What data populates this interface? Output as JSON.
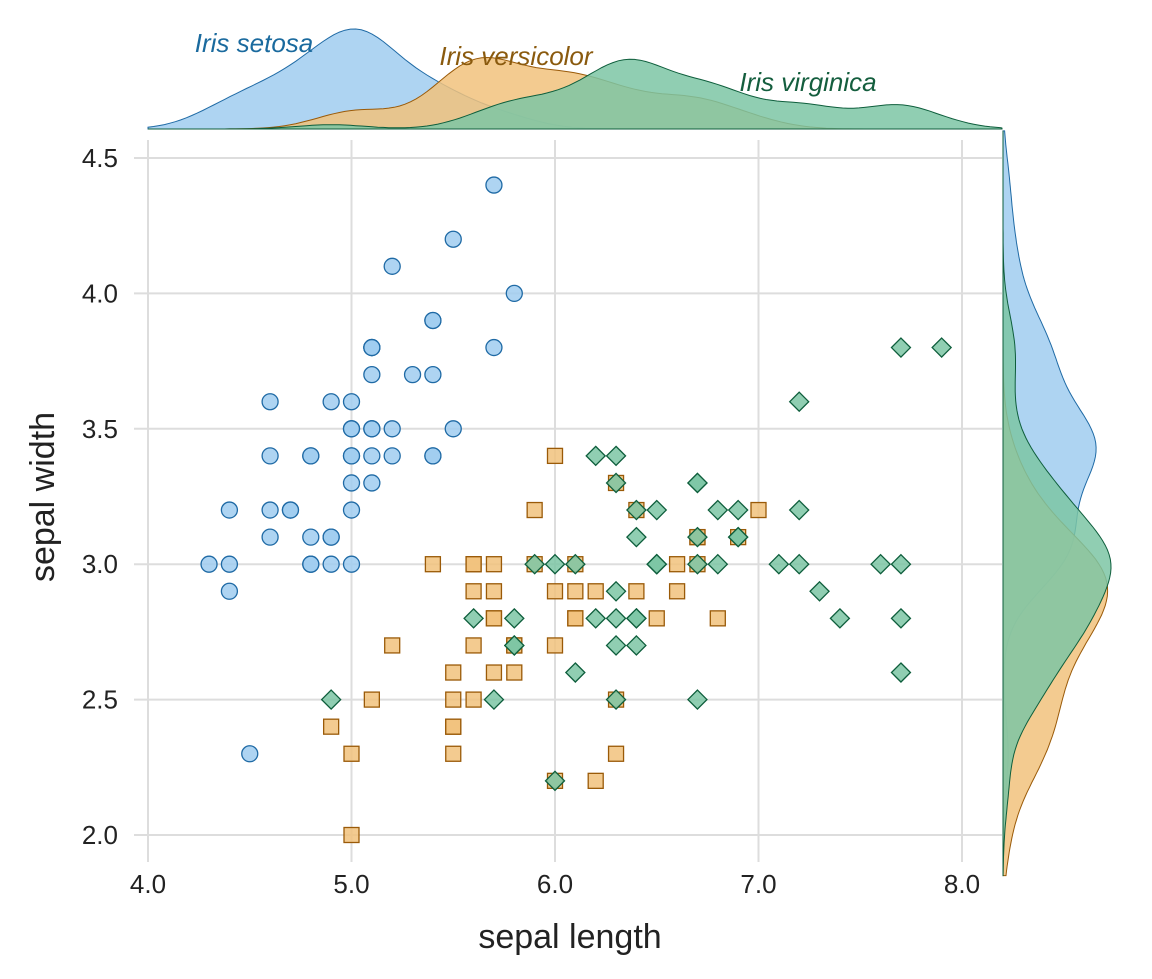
{
  "chart_data": {
    "type": "scatter",
    "xlabel": "sepal length",
    "ylabel": "sepal width",
    "xlim": [
      4.0,
      8.0
    ],
    "ylim": [
      2.0,
      4.5
    ],
    "x_ticks": [
      "4.0",
      "5.0",
      "6.0",
      "7.0",
      "8.0"
    ],
    "y_ticks": [
      "2.0",
      "2.5",
      "3.0",
      "3.5",
      "4.0",
      "4.5"
    ],
    "grid": true,
    "marginal_densities": "top and right, one filled curve per series",
    "series": [
      {
        "name": "Iris setosa",
        "marker": "circle",
        "fill": "#a0cdf0",
        "stroke": "#1f6aa5",
        "label_color": "#1a6a9e",
        "points": [
          [
            5.1,
            3.5
          ],
          [
            4.9,
            3.0
          ],
          [
            4.7,
            3.2
          ],
          [
            4.6,
            3.1
          ],
          [
            5.0,
            3.6
          ],
          [
            5.4,
            3.9
          ],
          [
            4.6,
            3.4
          ],
          [
            5.0,
            3.4
          ],
          [
            4.4,
            2.9
          ],
          [
            4.9,
            3.1
          ],
          [
            5.4,
            3.7
          ],
          [
            4.8,
            3.4
          ],
          [
            4.8,
            3.0
          ],
          [
            4.3,
            3.0
          ],
          [
            5.8,
            4.0
          ],
          [
            5.7,
            4.4
          ],
          [
            5.4,
            3.9
          ],
          [
            5.1,
            3.5
          ],
          [
            5.7,
            3.8
          ],
          [
            5.1,
            3.8
          ],
          [
            5.4,
            3.4
          ],
          [
            5.1,
            3.7
          ],
          [
            4.6,
            3.6
          ],
          [
            5.1,
            3.3
          ],
          [
            4.8,
            3.4
          ],
          [
            5.0,
            3.0
          ],
          [
            5.0,
            3.4
          ],
          [
            5.2,
            3.5
          ],
          [
            5.2,
            3.4
          ],
          [
            4.7,
            3.2
          ],
          [
            4.8,
            3.1
          ],
          [
            5.4,
            3.4
          ],
          [
            5.2,
            4.1
          ],
          [
            5.5,
            4.2
          ],
          [
            4.9,
            3.1
          ],
          [
            5.0,
            3.2
          ],
          [
            5.5,
            3.5
          ],
          [
            4.9,
            3.6
          ],
          [
            4.4,
            3.0
          ],
          [
            5.1,
            3.4
          ],
          [
            5.0,
            3.5
          ],
          [
            4.5,
            2.3
          ],
          [
            4.4,
            3.2
          ],
          [
            5.0,
            3.5
          ],
          [
            5.1,
            3.8
          ],
          [
            4.8,
            3.0
          ],
          [
            5.1,
            3.8
          ],
          [
            4.6,
            3.2
          ],
          [
            5.3,
            3.7
          ],
          [
            5.0,
            3.3
          ]
        ]
      },
      {
        "name": "Iris versicolor",
        "marker": "square",
        "fill": "#f1c27d",
        "stroke": "#9a5a08",
        "label_color": "#8a5a0e",
        "points": [
          [
            7.0,
            3.2
          ],
          [
            6.4,
            3.2
          ],
          [
            6.9,
            3.1
          ],
          [
            5.5,
            2.3
          ],
          [
            6.5,
            2.8
          ],
          [
            5.7,
            2.8
          ],
          [
            6.3,
            3.3
          ],
          [
            4.9,
            2.4
          ],
          [
            6.6,
            2.9
          ],
          [
            5.2,
            2.7
          ],
          [
            5.0,
            2.0
          ],
          [
            5.9,
            3.0
          ],
          [
            6.0,
            2.2
          ],
          [
            6.1,
            2.9
          ],
          [
            5.6,
            2.9
          ],
          [
            6.7,
            3.1
          ],
          [
            5.6,
            3.0
          ],
          [
            5.8,
            2.7
          ],
          [
            6.2,
            2.2
          ],
          [
            5.6,
            2.5
          ],
          [
            5.9,
            3.2
          ],
          [
            6.1,
            2.8
          ],
          [
            6.3,
            2.5
          ],
          [
            6.1,
            2.8
          ],
          [
            6.4,
            2.9
          ],
          [
            6.6,
            3.0
          ],
          [
            6.8,
            2.8
          ],
          [
            6.7,
            3.0
          ],
          [
            6.0,
            2.9
          ],
          [
            5.7,
            2.6
          ],
          [
            5.5,
            2.4
          ],
          [
            5.5,
            2.4
          ],
          [
            5.8,
            2.7
          ],
          [
            6.0,
            2.7
          ],
          [
            5.4,
            3.0
          ],
          [
            6.0,
            3.4
          ],
          [
            6.7,
            3.1
          ],
          [
            6.3,
            2.3
          ],
          [
            5.6,
            3.0
          ],
          [
            5.5,
            2.5
          ],
          [
            5.5,
            2.6
          ],
          [
            6.1,
            3.0
          ],
          [
            5.8,
            2.6
          ],
          [
            5.0,
            2.3
          ],
          [
            5.6,
            2.7
          ],
          [
            5.7,
            3.0
          ],
          [
            5.7,
            2.9
          ],
          [
            6.2,
            2.9
          ],
          [
            5.1,
            2.5
          ],
          [
            5.7,
            2.8
          ]
        ]
      },
      {
        "name": "Iris virginica",
        "marker": "diamond",
        "fill": "#7cc5a5",
        "stroke": "#0e5e3c",
        "label_color": "#145e3e",
        "points": [
          [
            6.3,
            3.3
          ],
          [
            5.8,
            2.7
          ],
          [
            7.1,
            3.0
          ],
          [
            6.3,
            2.9
          ],
          [
            6.5,
            3.0
          ],
          [
            7.6,
            3.0
          ],
          [
            4.9,
            2.5
          ],
          [
            7.3,
            2.9
          ],
          [
            6.7,
            2.5
          ],
          [
            7.2,
            3.6
          ],
          [
            6.5,
            3.2
          ],
          [
            6.4,
            2.7
          ],
          [
            6.8,
            3.0
          ],
          [
            5.7,
            2.5
          ],
          [
            5.8,
            2.8
          ],
          [
            6.4,
            3.2
          ],
          [
            6.5,
            3.0
          ],
          [
            7.7,
            3.8
          ],
          [
            7.7,
            2.6
          ],
          [
            6.0,
            2.2
          ],
          [
            6.9,
            3.2
          ],
          [
            5.6,
            2.8
          ],
          [
            7.7,
            2.8
          ],
          [
            6.3,
            2.7
          ],
          [
            6.7,
            3.3
          ],
          [
            7.2,
            3.2
          ],
          [
            6.2,
            2.8
          ],
          [
            6.1,
            3.0
          ],
          [
            6.4,
            2.8
          ],
          [
            7.2,
            3.0
          ],
          [
            7.4,
            2.8
          ],
          [
            7.9,
            3.8
          ],
          [
            6.4,
            2.8
          ],
          [
            6.3,
            2.8
          ],
          [
            6.1,
            2.6
          ],
          [
            7.7,
            3.0
          ],
          [
            6.3,
            3.4
          ],
          [
            6.4,
            3.1
          ],
          [
            6.0,
            3.0
          ],
          [
            6.9,
            3.1
          ],
          [
            6.7,
            3.1
          ],
          [
            6.9,
            3.1
          ],
          [
            5.8,
            2.7
          ],
          [
            6.8,
            3.2
          ],
          [
            6.7,
            3.3
          ],
          [
            6.7,
            3.0
          ],
          [
            6.3,
            2.5
          ],
          [
            6.5,
            3.0
          ],
          [
            6.2,
            3.4
          ],
          [
            5.9,
            3.0
          ]
        ]
      }
    ]
  }
}
